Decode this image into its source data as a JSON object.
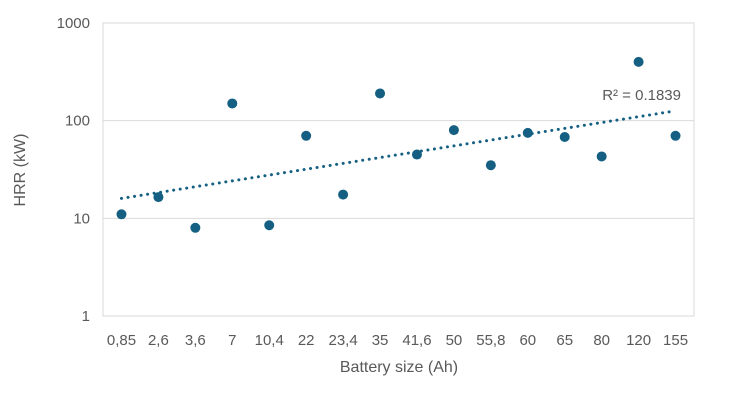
{
  "chart": {
    "y_axis_title": "HRR (kW)",
    "x_axis_title": "Battery size (Ah)",
    "r2_label": "R² = 0.1839",
    "colors": {
      "point": "#156082",
      "trendline": "#156082",
      "gridline": "#d9d9d9",
      "plot_border": "#d9d9d9",
      "text": "#595959",
      "background": "#ffffff"
    }
  },
  "chart_data": {
    "type": "scatter",
    "title": "",
    "xlabel": "Battery size (Ah)",
    "ylabel": "HRR (kW)",
    "x_type": "categorical",
    "categories": [
      "0,85",
      "2,6",
      "3,6",
      "7",
      "10,4",
      "22",
      "23,4",
      "35",
      "41,6",
      "50",
      "55,8",
      "60",
      "65",
      "80",
      "120",
      "155"
    ],
    "values": [
      11,
      16.5,
      8,
      150,
      8.5,
      70,
      17.5,
      190,
      45,
      80,
      35,
      75,
      68,
      43,
      400,
      70
    ],
    "y_scale": "log",
    "ylim": [
      1,
      1000
    ],
    "y_ticks": [
      1,
      10,
      100,
      1000
    ],
    "grid": "horizontal",
    "legend": "none",
    "trendline": {
      "style": "dotted",
      "start_value": 16,
      "end_value": 126,
      "r_squared": 0.1839,
      "label": "R² = 0.1839"
    }
  }
}
